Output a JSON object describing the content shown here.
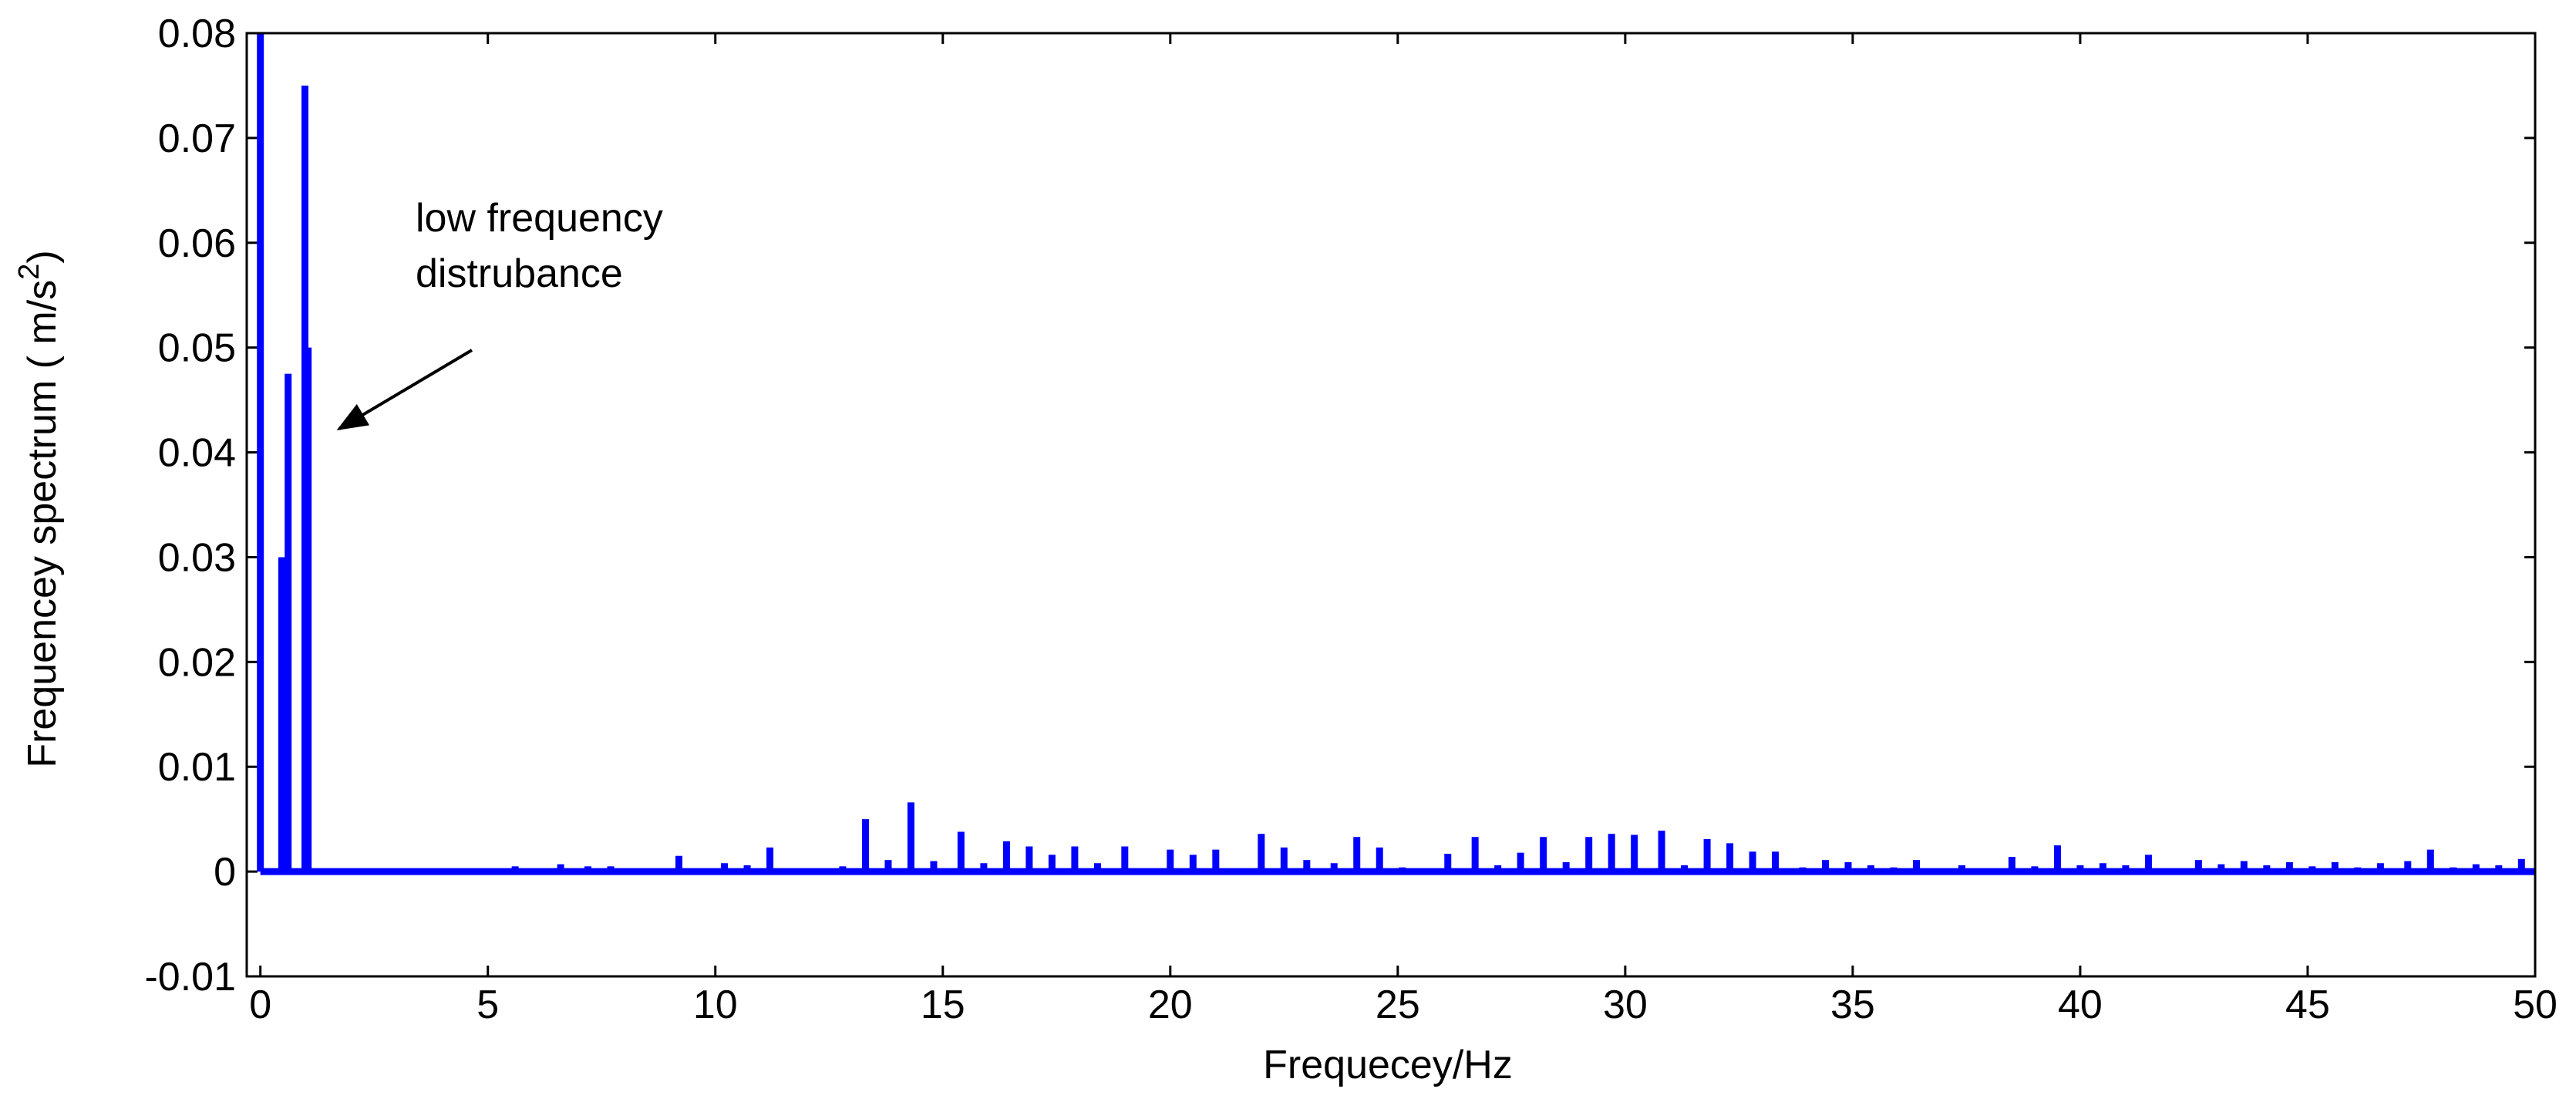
{
  "chart_data": {
    "type": "stem",
    "xlabel": "Frequecey/Hz",
    "ylabel": [
      "Frequencey spectrum ( m/s",
      "2",
      ")"
    ],
    "annotation": [
      "low frequency",
      "distrubance"
    ],
    "color": "#0000ff",
    "xlim": [
      -0.3,
      50
    ],
    "xticks": [
      0,
      5,
      10,
      15,
      20,
      25,
      30,
      35,
      40,
      45,
      50
    ],
    "ylim": [
      -0.01,
      0.08
    ],
    "yticks": [
      -0.01,
      0,
      0.01,
      0.02,
      0.03,
      0.04,
      0.05,
      0.06,
      0.07,
      0.08
    ],
    "x": [
      0,
      0.47,
      0.61,
      0.98,
      1.05,
      5.6,
      6.2,
      6.6,
      7.2,
      7.7,
      8.7,
      9.2,
      10.2,
      10.7,
      11.2,
      11.8,
      12.2,
      12.8,
      13.3,
      13.8,
      14.3,
      14.8,
      15.4,
      15.9,
      16.4,
      16.9,
      17.4,
      17.9,
      18.4,
      19.0,
      19.5,
      20.0,
      20.5,
      21.0,
      22.0,
      22.5,
      23.0,
      23.6,
      24.1,
      24.6,
      25.1,
      26.1,
      26.7,
      27.2,
      27.7,
      28.2,
      28.7,
      29.2,
      29.7,
      30.2,
      30.8,
      31.3,
      31.8,
      32.3,
      32.8,
      33.3,
      33.9,
      34.4,
      34.9,
      35.4,
      35.9,
      36.4,
      37.4,
      38.5,
      39.0,
      39.5,
      40.0,
      40.5,
      41.0,
      41.5,
      42.1,
      42.6,
      43.1,
      43.6,
      44.1,
      44.6,
      45.1,
      45.6,
      46.1,
      46.6,
      47.2,
      47.7,
      48.2,
      48.7,
      49.2,
      49.7
    ],
    "values": [
      0.08,
      0.03,
      0.0475,
      0.075,
      0.05,
      0.0005,
      0.0003,
      0.0007,
      0.0005,
      0.0005,
      0.0003,
      0.0015,
      0.0008,
      0.0006,
      0.0023,
      0.0003,
      0.0003,
      0.0005,
      0.005,
      0.0011,
      0.0066,
      0.001,
      0.0038,
      0.0008,
      0.0029,
      0.0024,
      0.0016,
      0.0024,
      0.0008,
      0.0024,
      0.0003,
      0.0021,
      0.0016,
      0.0021,
      0.0036,
      0.0023,
      0.0011,
      0.0008,
      0.0033,
      0.0023,
      0.0004,
      0.0017,
      0.0033,
      0.0006,
      0.0018,
      0.0033,
      0.0009,
      0.0033,
      0.0036,
      0.0035,
      0.0039,
      0.0006,
      0.0031,
      0.0027,
      0.0019,
      0.0019,
      0.0004,
      0.0011,
      0.0009,
      0.0006,
      0.0004,
      0.0011,
      0.0006,
      0.0014,
      0.0005,
      0.0025,
      0.0006,
      0.0008,
      0.0006,
      0.0016,
      0.0003,
      0.0011,
      0.0007,
      0.001,
      0.0006,
      0.0009,
      0.0005,
      0.0009,
      0.0004,
      0.0008,
      0.001,
      0.0021,
      0.0004,
      0.0007,
      0.0006,
      0.0012
    ]
  }
}
